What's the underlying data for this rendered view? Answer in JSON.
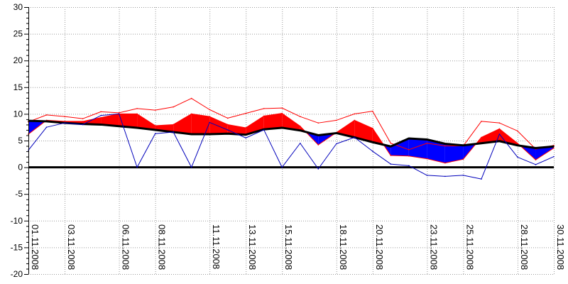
{
  "chart_data": {
    "type": "area",
    "title": "",
    "xlabel": "",
    "ylabel": "",
    "ylim": [
      -20,
      30
    ],
    "yticks": [
      30,
      25,
      20,
      15,
      10,
      5,
      0,
      -5,
      -10,
      -15,
      -20
    ],
    "grid": true,
    "x_day_range": [
      1,
      30
    ],
    "x_tick_labels": [
      {
        "day": 1,
        "label": "01.11.2008"
      },
      {
        "day": 3,
        "label": "03.11.2008"
      },
      {
        "day": 6,
        "label": "06.11.2008"
      },
      {
        "day": 8,
        "label": "08.11.2008"
      },
      {
        "day": 11,
        "label": "11.11.2008"
      },
      {
        "day": 13,
        "label": "13.11.2008"
      },
      {
        "day": 15,
        "label": "15.11.2008"
      },
      {
        "day": 18,
        "label": "18.11.2008"
      },
      {
        "day": 20,
        "label": "20.11.2008"
      },
      {
        "day": 23,
        "label": "23.11.2008"
      },
      {
        "day": 25,
        "label": "25.11.2008"
      },
      {
        "day": 28,
        "label": "28.11.2008"
      },
      {
        "day": 30,
        "label": "30.11.2008"
      }
    ],
    "days": [
      1,
      2,
      3,
      4,
      5,
      6,
      7,
      8,
      9,
      10,
      11,
      12,
      13,
      14,
      15,
      16,
      17,
      18,
      19,
      20,
      21,
      22,
      23,
      24,
      25,
      26,
      27,
      28,
      29,
      30
    ],
    "series": [
      {
        "role": "max",
        "color": "#ff0000",
        "values": [
          8.5,
          9.8,
          9.5,
          9.1,
          10.4,
          10.2,
          11.0,
          10.7,
          11.3,
          12.9,
          10.8,
          9.2,
          10.1,
          11.0,
          11.1,
          9.5,
          8.3,
          8.8,
          10.0,
          10.5,
          4.5,
          3.3,
          4.5,
          4.0,
          4.0,
          8.6,
          8.3,
          6.8,
          3.4,
          4.1
        ]
      },
      {
        "role": "mean",
        "color": "#ff0000",
        "fill_color": "#ff0000",
        "values": [
          6.2,
          8.8,
          8.6,
          8.6,
          9.3,
          10.0,
          10.0,
          7.8,
          8.0,
          10.0,
          9.5,
          8.0,
          7.4,
          9.6,
          10.1,
          7.7,
          4.2,
          6.5,
          8.8,
          7.3,
          2.2,
          2.1,
          1.6,
          0.8,
          1.5,
          5.6,
          7.2,
          4.5,
          1.4,
          3.6
        ]
      },
      {
        "role": "normal",
        "color": "#000000",
        "values": [
          8.7,
          8.6,
          8.3,
          8.1,
          8.0,
          7.7,
          7.4,
          7.0,
          6.6,
          6.2,
          6.2,
          6.3,
          6.1,
          7.1,
          7.4,
          6.9,
          6.0,
          6.4,
          5.6,
          4.7,
          3.9,
          5.4,
          5.2,
          4.4,
          4.1,
          4.5,
          4.9,
          4.1,
          3.6,
          3.9
        ]
      },
      {
        "role": "min",
        "color": "#0000bb",
        "values": [
          3.2,
          7.5,
          8.3,
          8.0,
          9.7,
          10.0,
          0.0,
          6.3,
          6.6,
          0.0,
          8.4,
          7.0,
          5.5,
          7.0,
          0.0,
          4.5,
          -0.3,
          4.4,
          5.6,
          3.0,
          0.6,
          0.3,
          -1.5,
          -1.7,
          -1.5,
          -2.2,
          6.2,
          1.9,
          0.5,
          2.0
        ]
      }
    ],
    "fill_colors": {
      "above_normal": "#ff0000",
      "below_normal": "#0000ff"
    },
    "zero_line": true
  }
}
